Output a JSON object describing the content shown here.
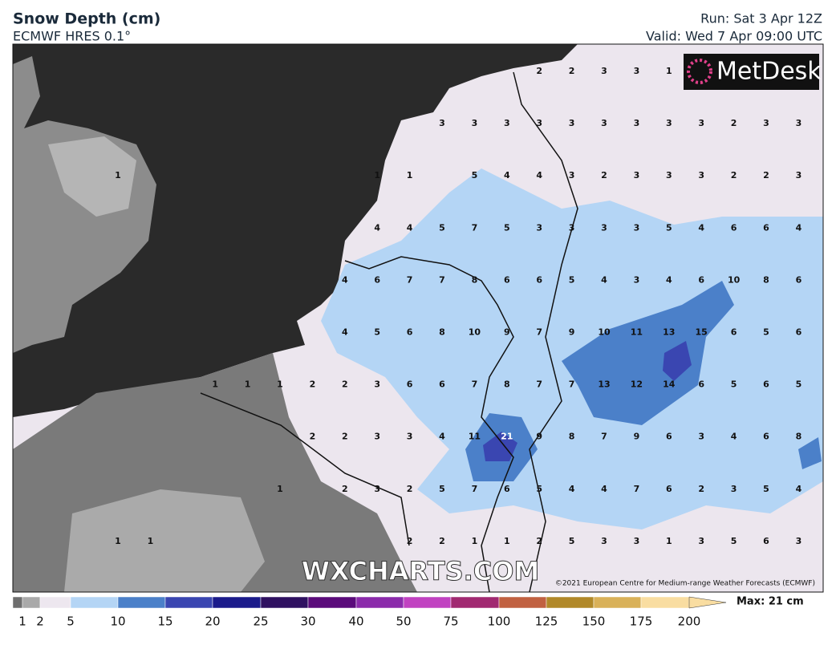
{
  "header": {
    "title": "Snow Depth (cm)",
    "subtitle": "ECMWF HRES 0.1°",
    "run": "Run: Sat 3 Apr 12Z",
    "valid": "Valid: Wed 7 Apr 09:00 UTC"
  },
  "logo": "MetDesk",
  "watermark": "WXCHARTS.COM",
  "copyright": "©2021 European Centre for Medium-range Weather Forecasts (ECMWF)",
  "grid": [
    [
      null,
      null,
      null,
      null,
      null,
      null,
      null,
      null,
      null,
      null,
      null,
      null,
      null,
      2,
      2,
      3,
      3,
      1,
      null,
      null,
      null,
      null
    ],
    [
      null,
      null,
      null,
      null,
      null,
      null,
      null,
      null,
      null,
      null,
      3,
      3,
      3,
      3,
      3,
      3,
      3,
      3,
      3,
      2,
      3,
      3
    ],
    [
      1,
      null,
      null,
      null,
      null,
      null,
      null,
      null,
      1,
      1,
      null,
      5,
      4,
      4,
      3,
      2,
      3,
      3,
      3,
      2,
      2,
      3
    ],
    [
      null,
      null,
      null,
      null,
      null,
      null,
      null,
      null,
      4,
      4,
      5,
      7,
      5,
      3,
      3,
      3,
      3,
      5,
      4,
      6,
      6,
      4
    ],
    [
      null,
      null,
      null,
      null,
      null,
      null,
      null,
      4,
      6,
      7,
      7,
      8,
      6,
      6,
      5,
      4,
      3,
      4,
      6,
      10,
      8,
      6
    ],
    [
      null,
      null,
      null,
      null,
      null,
      null,
      null,
      4,
      5,
      6,
      8,
      10,
      9,
      7,
      9,
      10,
      11,
      13,
      15,
      6,
      5,
      6
    ],
    [
      null,
      null,
      null,
      1,
      1,
      1,
      2,
      2,
      3,
      6,
      6,
      7,
      8,
      7,
      7,
      13,
      12,
      14,
      6,
      5,
      6,
      5
    ],
    [
      null,
      null,
      null,
      null,
      null,
      null,
      2,
      2,
      3,
      3,
      4,
      11,
      21,
      9,
      8,
      7,
      9,
      6,
      3,
      4,
      6,
      8
    ],
    [
      null,
      null,
      null,
      null,
      null,
      1,
      null,
      2,
      3,
      2,
      5,
      7,
      6,
      5,
      4,
      4,
      7,
      6,
      2,
      3,
      5,
      4
    ],
    [
      1,
      1,
      null,
      null,
      null,
      null,
      null,
      null,
      null,
      2,
      2,
      1,
      1,
      2,
      5,
      3,
      3,
      1,
      3,
      5,
      6,
      3
    ]
  ],
  "legend": {
    "labels": [
      1,
      2,
      5,
      10,
      15,
      20,
      25,
      30,
      40,
      50,
      75,
      100,
      125,
      150,
      175,
      200
    ],
    "colors": [
      "#6e6e6e",
      "#a9a9a9",
      "#ede7ef",
      "#b4d5f5",
      "#4b80c9",
      "#3a46b1",
      "#1b1b8b",
      "#2f1161",
      "#5b0b7b",
      "#8b2bab",
      "#c142c1",
      "#a12971",
      "#c16141",
      "#b18929",
      "#d9b159",
      "#f9dda1"
    ],
    "max": "Max: 21 cm"
  }
}
